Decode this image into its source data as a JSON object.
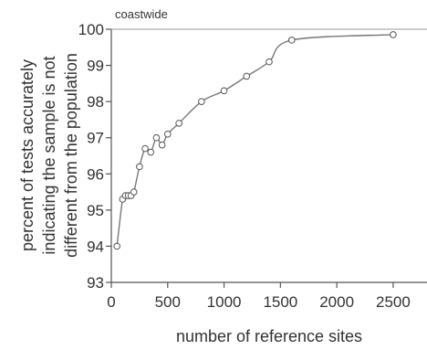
{
  "chart_data": {
    "type": "line",
    "annotation": "coastwide",
    "xlabel": "number of reference sites",
    "ylabel_lines": [
      "percent of tests accurately",
      "indicating the sample is not",
      "different from the population"
    ],
    "xlim": [
      0,
      2800
    ],
    "ylim": [
      93,
      100
    ],
    "xticks": [
      0,
      500,
      1000,
      1500,
      2000,
      2500
    ],
    "yticks": [
      93,
      94,
      95,
      96,
      97,
      98,
      99,
      100
    ],
    "xtick_labels": [
      "0",
      "500",
      "1000",
      "1500",
      "2000",
      "2500"
    ],
    "ytick_labels": [
      "93",
      "94",
      "95",
      "96",
      "97",
      "98",
      "99",
      "100"
    ],
    "series": [
      {
        "x": [
          50,
          100,
          125,
          150,
          175,
          200,
          250,
          300,
          350,
          400,
          450,
          500,
          600,
          800,
          1000,
          1200,
          1400,
          1600,
          2500
        ],
        "y": [
          94.0,
          95.3,
          95.4,
          95.4,
          95.4,
          95.5,
          96.2,
          96.7,
          96.6,
          97.0,
          96.8,
          97.1,
          97.4,
          98.0,
          98.3,
          98.7,
          99.1,
          99.7,
          99.85
        ]
      }
    ],
    "grid": false,
    "legend": "none",
    "colors": {
      "line": "#777777",
      "marker_edge": "#555555",
      "axis": "#555555",
      "text": "#333333"
    }
  }
}
